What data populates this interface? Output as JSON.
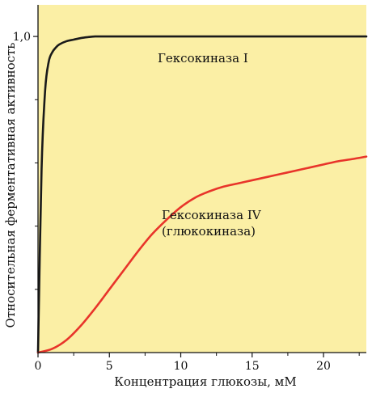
{
  "chart_data": {
    "type": "line",
    "xlabel": "Концентрация глюкозы, мМ",
    "ylabel": "Относительная ферментативная активность",
    "xlim": [
      0,
      23
    ],
    "ylim": [
      0,
      1.1
    ],
    "x_ticks": [
      0,
      5,
      10,
      15,
      20
    ],
    "x_tick_labels": [
      "0",
      "5",
      "10",
      "15",
      "20"
    ],
    "y_ticks": [
      1.0
    ],
    "y_tick_labels": [
      "1,0"
    ],
    "grid": false,
    "series": [
      {
        "name": "Гексокиназа I",
        "color": "#1a1a1a",
        "x": [
          0,
          0.25,
          0.5,
          0.75,
          1,
          1.25,
          1.5,
          2,
          2.5,
          3,
          3.5,
          4,
          4.5,
          5,
          10,
          15,
          20,
          23
        ],
        "y": [
          0,
          0.58,
          0.83,
          0.92,
          0.95,
          0.965,
          0.975,
          0.985,
          0.99,
          0.995,
          0.998,
          1.0,
          1.0,
          1.0,
          1.0,
          1.0,
          1.0,
          1.0
        ]
      },
      {
        "name": "Гексокиназа IV (глюкокиназа)",
        "color": "#e8342a",
        "x": [
          0,
          1,
          2,
          3,
          4,
          5,
          6,
          7,
          8,
          9,
          10,
          11,
          12,
          13,
          14,
          15,
          16,
          17,
          18,
          19,
          20,
          21,
          22,
          23
        ],
        "y": [
          0,
          0.012,
          0.04,
          0.085,
          0.14,
          0.2,
          0.26,
          0.32,
          0.375,
          0.42,
          0.46,
          0.49,
          0.51,
          0.525,
          0.535,
          0.545,
          0.555,
          0.565,
          0.575,
          0.585,
          0.595,
          0.605,
          0.612,
          0.62
        ]
      }
    ],
    "annotations": [
      {
        "text": "Гексокиназа I",
        "series": 0
      },
      {
        "text": "Гексокиназа IV",
        "series": 1
      },
      {
        "text": "(глюкокиназа)",
        "series": 1
      }
    ],
    "plot_background": "#fbefa5"
  }
}
